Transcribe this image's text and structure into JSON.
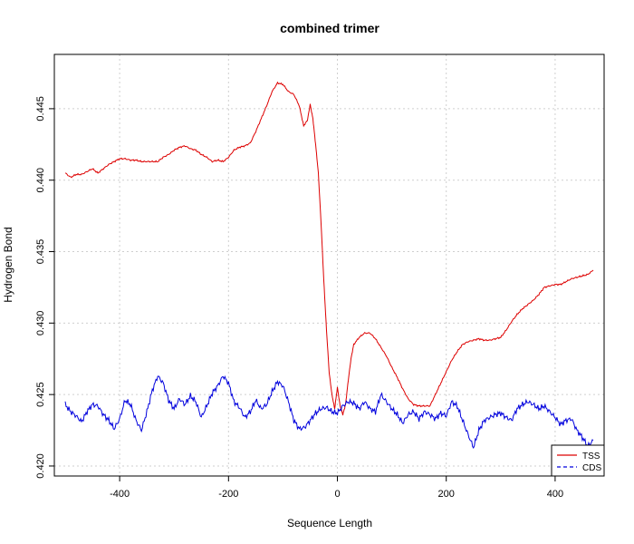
{
  "chart_data": {
    "type": "line",
    "title": "combined trimer",
    "xlabel": "Sequence Length",
    "ylabel": "Hydrogen Bond",
    "xlim": [
      -520,
      490
    ],
    "ylim": [
      0.4193,
      0.4488
    ],
    "x_ticks": [
      -400,
      -200,
      0,
      200,
      400
    ],
    "y_ticks": [
      0.42,
      0.425,
      0.43,
      0.435,
      0.44,
      0.445
    ],
    "x_tick_labels": [
      "-400",
      "-200",
      "0",
      "200",
      "400"
    ],
    "y_tick_labels": [
      "0.420",
      "0.425",
      "0.430",
      "0.435",
      "0.440",
      "0.445"
    ],
    "grid": true,
    "legend_position": "bottom-right",
    "series": [
      {
        "name": "TSS",
        "color": "#dd0000",
        "line_style": "solid",
        "points": [
          [
            -500,
            0.4405
          ],
          [
            -490,
            0.4402
          ],
          [
            -480,
            0.4404
          ],
          [
            -470,
            0.4404
          ],
          [
            -460,
            0.4406
          ],
          [
            -450,
            0.4408
          ],
          [
            -440,
            0.4405
          ],
          [
            -430,
            0.4408
          ],
          [
            -420,
            0.4411
          ],
          [
            -410,
            0.4413
          ],
          [
            -400,
            0.4415
          ],
          [
            -390,
            0.4415
          ],
          [
            -380,
            0.4414
          ],
          [
            -370,
            0.4414
          ],
          [
            -360,
            0.4413
          ],
          [
            -350,
            0.4413
          ],
          [
            -340,
            0.4413
          ],
          [
            -330,
            0.4413
          ],
          [
            -320,
            0.4416
          ],
          [
            -310,
            0.4418
          ],
          [
            -300,
            0.4421
          ],
          [
            -290,
            0.4423
          ],
          [
            -280,
            0.4424
          ],
          [
            -270,
            0.4422
          ],
          [
            -260,
            0.4421
          ],
          [
            -250,
            0.4418
          ],
          [
            -240,
            0.4416
          ],
          [
            -230,
            0.4413
          ],
          [
            -220,
            0.4414
          ],
          [
            -210,
            0.4413
          ],
          [
            -200,
            0.4416
          ],
          [
            -190,
            0.4421
          ],
          [
            -180,
            0.4423
          ],
          [
            -170,
            0.4424
          ],
          [
            -160,
            0.4426
          ],
          [
            -150,
            0.4434
          ],
          [
            -140,
            0.4443
          ],
          [
            -130,
            0.4452
          ],
          [
            -120,
            0.4462
          ],
          [
            -110,
            0.4468
          ],
          [
            -100,
            0.4467
          ],
          [
            -90,
            0.4462
          ],
          [
            -80,
            0.446
          ],
          [
            -70,
            0.4452
          ],
          [
            -62,
            0.4438
          ],
          [
            -55,
            0.4442
          ],
          [
            -50,
            0.4453
          ],
          [
            -45,
            0.4443
          ],
          [
            -40,
            0.4425
          ],
          [
            -35,
            0.4405
          ],
          [
            -30,
            0.437
          ],
          [
            -25,
            0.433
          ],
          [
            -20,
            0.4295
          ],
          [
            -15,
            0.4265
          ],
          [
            -10,
            0.425
          ],
          [
            -5,
            0.424
          ],
          [
            0,
            0.4255
          ],
          [
            5,
            0.4242
          ],
          [
            10,
            0.4236
          ],
          [
            15,
            0.4243
          ],
          [
            20,
            0.426
          ],
          [
            25,
            0.4275
          ],
          [
            30,
            0.4285
          ],
          [
            40,
            0.429
          ],
          [
            50,
            0.4293
          ],
          [
            60,
            0.4293
          ],
          [
            70,
            0.4289
          ],
          [
            80,
            0.4283
          ],
          [
            90,
            0.4277
          ],
          [
            100,
            0.4269
          ],
          [
            110,
            0.4262
          ],
          [
            120,
            0.4254
          ],
          [
            130,
            0.4247
          ],
          [
            140,
            0.4243
          ],
          [
            150,
            0.4242
          ],
          [
            160,
            0.4242
          ],
          [
            170,
            0.4242
          ],
          [
            180,
            0.425
          ],
          [
            190,
            0.4258
          ],
          [
            200,
            0.4266
          ],
          [
            210,
            0.4274
          ],
          [
            220,
            0.428
          ],
          [
            230,
            0.4285
          ],
          [
            240,
            0.4287
          ],
          [
            250,
            0.4288
          ],
          [
            260,
            0.4289
          ],
          [
            270,
            0.4288
          ],
          [
            280,
            0.4288
          ],
          [
            290,
            0.4289
          ],
          [
            300,
            0.429
          ],
          [
            310,
            0.4295
          ],
          [
            320,
            0.4301
          ],
          [
            330,
            0.4306
          ],
          [
            340,
            0.431
          ],
          [
            350,
            0.4313
          ],
          [
            360,
            0.4316
          ],
          [
            370,
            0.432
          ],
          [
            380,
            0.4325
          ],
          [
            390,
            0.4326
          ],
          [
            400,
            0.4327
          ],
          [
            410,
            0.4327
          ],
          [
            420,
            0.4329
          ],
          [
            430,
            0.4331
          ],
          [
            440,
            0.4332
          ],
          [
            450,
            0.4333
          ],
          [
            460,
            0.4334
          ],
          [
            470,
            0.4337
          ]
        ]
      },
      {
        "name": "CDS",
        "color": "#0000dd",
        "line_style": "dashed",
        "points": [
          [
            -500,
            0.4243
          ],
          [
            -490,
            0.4238
          ],
          [
            -480,
            0.4235
          ],
          [
            -470,
            0.4231
          ],
          [
            -460,
            0.4238
          ],
          [
            -450,
            0.4243
          ],
          [
            -440,
            0.4242
          ],
          [
            -430,
            0.4236
          ],
          [
            -420,
            0.4232
          ],
          [
            -410,
            0.4226
          ],
          [
            -400,
            0.4233
          ],
          [
            -390,
            0.4246
          ],
          [
            -380,
            0.4243
          ],
          [
            -370,
            0.4232
          ],
          [
            -360,
            0.4225
          ],
          [
            -350,
            0.4238
          ],
          [
            -340,
            0.4253
          ],
          [
            -330,
            0.4263
          ],
          [
            -320,
            0.4258
          ],
          [
            -310,
            0.4246
          ],
          [
            -300,
            0.424
          ],
          [
            -290,
            0.4247
          ],
          [
            -280,
            0.4243
          ],
          [
            -270,
            0.4249
          ],
          [
            -260,
            0.4245
          ],
          [
            -250,
            0.4234
          ],
          [
            -240,
            0.4242
          ],
          [
            -230,
            0.4251
          ],
          [
            -220,
            0.4256
          ],
          [
            -210,
            0.4263
          ],
          [
            -200,
            0.4258
          ],
          [
            -190,
            0.4245
          ],
          [
            -180,
            0.4241
          ],
          [
            -170,
            0.4234
          ],
          [
            -160,
            0.4238
          ],
          [
            -150,
            0.4246
          ],
          [
            -140,
            0.424
          ],
          [
            -130,
            0.4243
          ],
          [
            -120,
            0.4252
          ],
          [
            -110,
            0.4259
          ],
          [
            -100,
            0.4256
          ],
          [
            -90,
            0.4245
          ],
          [
            -80,
            0.4232
          ],
          [
            -70,
            0.4226
          ],
          [
            -60,
            0.4227
          ],
          [
            -50,
            0.4232
          ],
          [
            -40,
            0.4237
          ],
          [
            -30,
            0.424
          ],
          [
            -20,
            0.4241
          ],
          [
            -10,
            0.4238
          ],
          [
            0,
            0.4237
          ],
          [
            10,
            0.4242
          ],
          [
            20,
            0.4245
          ],
          [
            30,
            0.4244
          ],
          [
            40,
            0.424
          ],
          [
            50,
            0.4245
          ],
          [
            60,
            0.424
          ],
          [
            70,
            0.4238
          ],
          [
            80,
            0.425
          ],
          [
            90,
            0.4245
          ],
          [
            100,
            0.424
          ],
          [
            110,
            0.4236
          ],
          [
            120,
            0.423
          ],
          [
            130,
            0.4236
          ],
          [
            140,
            0.4238
          ],
          [
            150,
            0.4233
          ],
          [
            160,
            0.4238
          ],
          [
            170,
            0.4236
          ],
          [
            180,
            0.4233
          ],
          [
            190,
            0.4237
          ],
          [
            200,
            0.4235
          ],
          [
            210,
            0.4245
          ],
          [
            220,
            0.4242
          ],
          [
            230,
            0.4232
          ],
          [
            240,
            0.4222
          ],
          [
            250,
            0.4213
          ],
          [
            260,
            0.4225
          ],
          [
            270,
            0.4232
          ],
          [
            280,
            0.4234
          ],
          [
            290,
            0.4236
          ],
          [
            300,
            0.4237
          ],
          [
            310,
            0.4234
          ],
          [
            320,
            0.4232
          ],
          [
            330,
            0.424
          ],
          [
            340,
            0.4243
          ],
          [
            350,
            0.4245
          ],
          [
            360,
            0.4243
          ],
          [
            370,
            0.424
          ],
          [
            380,
            0.4242
          ],
          [
            390,
            0.4238
          ],
          [
            400,
            0.4234
          ],
          [
            410,
            0.4229
          ],
          [
            420,
            0.4232
          ],
          [
            430,
            0.4233
          ],
          [
            440,
            0.4225
          ],
          [
            450,
            0.422
          ],
          [
            460,
            0.4214
          ],
          [
            470,
            0.4218
          ]
        ]
      }
    ]
  }
}
